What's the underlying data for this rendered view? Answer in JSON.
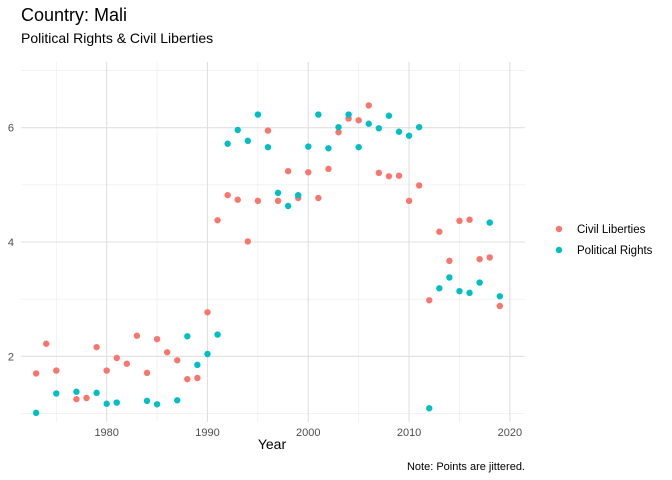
{
  "chart_data": {
    "type": "scatter",
    "title": "Country: Mali",
    "subtitle": "Political Rights & Civil Liberties",
    "xlabel": "Year",
    "ylabel": "",
    "caption": "Note: Points are jittered.",
    "xlim": [
      1971.5,
      2021.5
    ],
    "ylim": [
      0.85,
      7.15
    ],
    "x_ticks": [
      1980,
      1990,
      2000,
      2010,
      2020
    ],
    "x_tick_labels": [
      "1980",
      "1990",
      "2000",
      "2010",
      "2020"
    ],
    "y_ticks": [
      2,
      4,
      6
    ],
    "y_tick_labels": [
      "2",
      "4",
      "6"
    ],
    "grid": true,
    "legend_position": "right",
    "series": [
      {
        "name": "Civil Liberties",
        "color": "#F8766D",
        "points": [
          [
            1973,
            1.7
          ],
          [
            1974,
            2.22
          ],
          [
            1975,
            1.75
          ],
          [
            1977,
            1.25
          ],
          [
            1978,
            1.27
          ],
          [
            1979,
            2.16
          ],
          [
            1980,
            1.75
          ],
          [
            1981,
            1.97
          ],
          [
            1982,
            1.87
          ],
          [
            1983,
            2.36
          ],
          [
            1984,
            1.71
          ],
          [
            1985,
            2.3
          ],
          [
            1986,
            2.07
          ],
          [
            1987,
            1.93
          ],
          [
            1988,
            1.6
          ],
          [
            1989,
            1.62
          ],
          [
            1990,
            2.77
          ],
          [
            1991,
            4.38
          ],
          [
            1992,
            4.82
          ],
          [
            1993,
            4.74
          ],
          [
            1994,
            4.01
          ],
          [
            1995,
            4.72
          ],
          [
            1996,
            5.95
          ],
          [
            1997,
            4.72
          ],
          [
            1998,
            5.24
          ],
          [
            1999,
            4.77
          ],
          [
            2000,
            5.22
          ],
          [
            2001,
            4.77
          ],
          [
            2002,
            5.28
          ],
          [
            2003,
            5.92
          ],
          [
            2004,
            6.16
          ],
          [
            2005,
            6.13
          ],
          [
            2006,
            6.39
          ],
          [
            2007,
            5.21
          ],
          [
            2008,
            5.15
          ],
          [
            2009,
            5.16
          ],
          [
            2010,
            4.72
          ],
          [
            2011,
            4.99
          ],
          [
            2012,
            2.98
          ],
          [
            2013,
            4.18
          ],
          [
            2014,
            3.67
          ],
          [
            2015,
            4.37
          ],
          [
            2016,
            4.39
          ],
          [
            2017,
            3.7
          ],
          [
            2018,
            3.73
          ],
          [
            2019,
            2.88
          ]
        ]
      },
      {
        "name": "Political Rights",
        "color": "#00BFC4",
        "points": [
          [
            1973,
            1.01
          ],
          [
            1975,
            1.35
          ],
          [
            1977,
            1.38
          ],
          [
            1979,
            1.36
          ],
          [
            1980,
            1.17
          ],
          [
            1981,
            1.19
          ],
          [
            1984,
            1.22
          ],
          [
            1985,
            1.16
          ],
          [
            1987,
            1.23
          ],
          [
            1988,
            2.35
          ],
          [
            1989,
            1.85
          ],
          [
            1990,
            2.04
          ],
          [
            1991,
            2.38
          ],
          [
            1992,
            5.72
          ],
          [
            1993,
            5.96
          ],
          [
            1994,
            5.77
          ],
          [
            1995,
            6.23
          ],
          [
            1996,
            5.66
          ],
          [
            1997,
            4.86
          ],
          [
            1998,
            4.63
          ],
          [
            1999,
            4.82
          ],
          [
            2000,
            5.67
          ],
          [
            2001,
            6.23
          ],
          [
            2002,
            5.64
          ],
          [
            2003,
            6.01
          ],
          [
            2004,
            6.23
          ],
          [
            2005,
            5.66
          ],
          [
            2006,
            6.07
          ],
          [
            2007,
            5.99
          ],
          [
            2008,
            6.21
          ],
          [
            2009,
            5.93
          ],
          [
            2010,
            5.86
          ],
          [
            2011,
            6.01
          ],
          [
            2012,
            1.09
          ],
          [
            2013,
            3.19
          ],
          [
            2014,
            3.38
          ],
          [
            2015,
            3.14
          ],
          [
            2016,
            3.11
          ],
          [
            2017,
            3.29
          ],
          [
            2018,
            4.34
          ],
          [
            2019,
            3.05
          ]
        ]
      }
    ]
  }
}
